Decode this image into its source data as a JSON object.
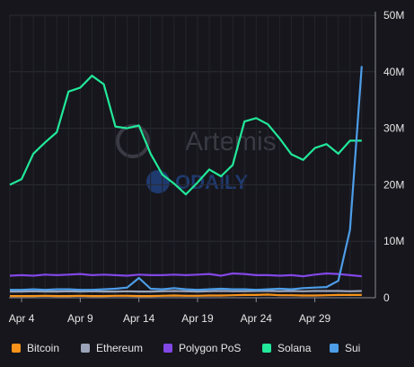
{
  "chart_data": {
    "type": "line",
    "title": "",
    "xlabel": "",
    "ylabel": "",
    "ylim": [
      0,
      50000000
    ],
    "y_ticks": [
      0,
      10000000,
      20000000,
      30000000,
      40000000,
      50000000
    ],
    "y_tick_labels": [
      "0",
      "10M",
      "20M",
      "30M",
      "40M",
      "50M"
    ],
    "x_tick_labels": [
      "Apr 4",
      "Apr 9",
      "Apr 14",
      "Apr 19",
      "Apr 24",
      "Apr 29"
    ],
    "x_tick_index": [
      1,
      6,
      11,
      16,
      21,
      26
    ],
    "x_count": 31,
    "grid": true,
    "legend_position": "bottom",
    "series": [
      {
        "name": "Bitcoin",
        "color": "#f7931a",
        "values": [
          300000,
          300000,
          300000,
          350000,
          300000,
          300000,
          350000,
          300000,
          300000,
          350000,
          350000,
          300000,
          300000,
          350000,
          400000,
          350000,
          350000,
          400000,
          400000,
          450000,
          500000,
          500000,
          550000,
          450000,
          450000,
          400000,
          400000,
          450000,
          500000,
          500000,
          500000
        ]
      },
      {
        "name": "Ethereum",
        "color": "#9aa3b8",
        "values": [
          1100000,
          1100000,
          1150000,
          1100000,
          1100000,
          1150000,
          1100000,
          1150000,
          1100000,
          1100000,
          1150000,
          1100000,
          1100000,
          1150000,
          1200000,
          1150000,
          1100000,
          1150000,
          1200000,
          1150000,
          1150000,
          1200000,
          1200000,
          1150000,
          1200000,
          1150000,
          1200000,
          1200000,
          1200000,
          1150000,
          1200000
        ]
      },
      {
        "name": "Polygon PoS",
        "color": "#8247e5",
        "values": [
          3900000,
          4000000,
          3900000,
          4100000,
          4000000,
          4100000,
          4200000,
          4000000,
          4100000,
          4000000,
          3900000,
          4100000,
          4000000,
          4000000,
          4100000,
          4000000,
          4100000,
          4200000,
          3900000,
          4300000,
          4200000,
          4000000,
          4000000,
          3900000,
          4000000,
          3800000,
          4100000,
          4300000,
          4200000,
          4000000,
          3800000
        ]
      },
      {
        "name": "Solana",
        "color": "#22e89a",
        "values": [
          20000000,
          21000000,
          25500000,
          27500000,
          29300000,
          36500000,
          37200000,
          39300000,
          37800000,
          30300000,
          30000000,
          30500000,
          25500000,
          21800000,
          20200000,
          18300000,
          20400000,
          22700000,
          21500000,
          23500000,
          31200000,
          31800000,
          30700000,
          28200000,
          25400000,
          24400000,
          26500000,
          27200000,
          25500000,
          27800000,
          27800000
        ]
      },
      {
        "name": "Sui",
        "color": "#4d9de8",
        "values": [
          1400000,
          1400000,
          1500000,
          1400000,
          1500000,
          1500000,
          1400000,
          1400000,
          1500000,
          1600000,
          1800000,
          3500000,
          1600000,
          1500000,
          1700000,
          1500000,
          1400000,
          1500000,
          1600000,
          1500000,
          1500000,
          1400000,
          1500000,
          1600000,
          1500000,
          1700000,
          1800000,
          1900000,
          3000000,
          12000000,
          41000000
        ]
      }
    ]
  }
}
